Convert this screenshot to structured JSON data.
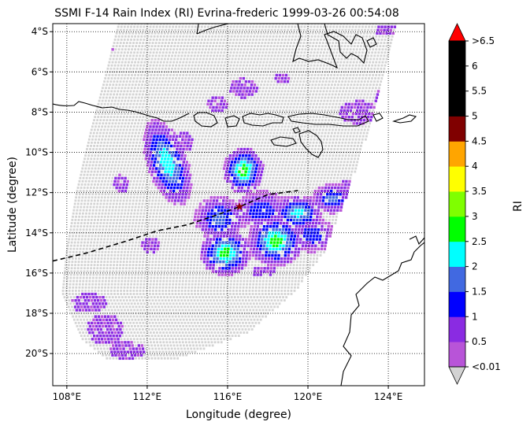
{
  "chart_data": {
    "type": "heatmap",
    "title": "SSMI F-14 Rain Index (RI) Evrina-frederic 1999-03-26 00:54:08",
    "xlabel": "Longitude (degree)",
    "ylabel": "Latitude (degree)",
    "xlim": [
      107.3,
      125.8
    ],
    "ylim": [
      -21.6,
      -3.6
    ],
    "x_ticks": [
      {
        "value": 108,
        "label": "108°E"
      },
      {
        "value": 112,
        "label": "112°E"
      },
      {
        "value": 116,
        "label": "116°E"
      },
      {
        "value": 120,
        "label": "120°E"
      },
      {
        "value": 124,
        "label": "124°E"
      }
    ],
    "y_ticks": [
      {
        "value": -4,
        "label": "4°S"
      },
      {
        "value": -6,
        "label": "6°S"
      },
      {
        "value": -8,
        "label": "8°S"
      },
      {
        "value": -10,
        "label": "10°S"
      },
      {
        "value": -12,
        "label": "12°S"
      },
      {
        "value": -14,
        "label": "14°S"
      },
      {
        "value": -16,
        "label": "16°S"
      },
      {
        "value": -18,
        "label": "18°S"
      },
      {
        "value": -20,
        "label": "20°S"
      }
    ],
    "grid": "dotted",
    "colorbar": {
      "label": "RI",
      "bins": [
        {
          "label": "<0.01",
          "color": "#b854d8"
        },
        {
          "label": "0.5",
          "color": "#8a2be2"
        },
        {
          "label": "1",
          "color": "#0000ff"
        },
        {
          "label": "1.5",
          "color": "#4169e1"
        },
        {
          "label": "2",
          "color": "#00ffff"
        },
        {
          "label": "2.5",
          "color": "#00ff00"
        },
        {
          "label": "3",
          "color": "#7fff00"
        },
        {
          "label": "3.5",
          "color": "#ffff00"
        },
        {
          "label": "4",
          "color": "#ffa500"
        },
        {
          "label": "4.5",
          "color": "#800000"
        },
        {
          "label": "5",
          "color": "#000000"
        },
        {
          "label": "5.5",
          "color": "#000000"
        },
        {
          "label": "6",
          "color": "#000000"
        }
      ],
      "top_label": ">6.5",
      "over_color": "#ff0000",
      "under_color": "#d3d3d3"
    },
    "swath_color": "#d3d3d3",
    "storm_center": {
      "lon": 116.6,
      "lat": -12.7,
      "color": "#8b0000"
    },
    "track": [
      [
        107.3,
        -15.4
      ],
      [
        109.0,
        -15.0
      ],
      [
        111.0,
        -14.4
      ],
      [
        112.5,
        -13.9
      ],
      [
        114.0,
        -13.6
      ],
      [
        115.5,
        -13.1
      ],
      [
        116.6,
        -12.7
      ],
      [
        118.0,
        -12.1
      ],
      [
        119.5,
        -11.9
      ]
    ],
    "rain_cells": [
      {
        "lon": 113.0,
        "lat": -10.5,
        "rx": 0.8,
        "ry": 1.8,
        "peak": 2.3,
        "tilt": -0.35
      },
      {
        "lon": 116.8,
        "lat": -10.9,
        "rx": 0.8,
        "ry": 0.9,
        "peak": 2.7,
        "tilt": 0
      },
      {
        "lon": 115.6,
        "lat": -13.3,
        "rx": 1.0,
        "ry": 0.9,
        "peak": 1.6,
        "tilt": 0
      },
      {
        "lon": 115.9,
        "lat": -15.0,
        "rx": 1.0,
        "ry": 0.9,
        "peak": 2.6,
        "tilt": 0
      },
      {
        "lon": 118.4,
        "lat": -14.4,
        "rx": 1.1,
        "ry": 1.0,
        "peak": 2.6,
        "tilt": 0
      },
      {
        "lon": 119.5,
        "lat": -13.0,
        "rx": 1.0,
        "ry": 0.7,
        "peak": 2.1,
        "tilt": 0
      },
      {
        "lon": 121.2,
        "lat": -12.3,
        "rx": 0.8,
        "ry": 0.6,
        "peak": 1.6,
        "tilt": 0
      },
      {
        "lon": 117.7,
        "lat": -12.9,
        "rx": 1.1,
        "ry": 0.8,
        "peak": 1.3,
        "tilt": 0
      },
      {
        "lon": 120.2,
        "lat": -14.1,
        "rx": 0.9,
        "ry": 0.7,
        "peak": 1.3,
        "tilt": 0
      }
    ],
    "light_rain_patches": [
      {
        "lon": 116.8,
        "lat": -6.8,
        "rx": 0.7,
        "ry": 0.5
      },
      {
        "lon": 115.5,
        "lat": -7.6,
        "rx": 0.5,
        "ry": 0.4
      },
      {
        "lon": 118.7,
        "lat": -6.3,
        "rx": 0.4,
        "ry": 0.3
      },
      {
        "lon": 122.5,
        "lat": -8.0,
        "rx": 1.0,
        "ry": 0.6
      },
      {
        "lon": 123.7,
        "lat": -7.3,
        "rx": 0.4,
        "ry": 0.5
      },
      {
        "lon": 123.9,
        "lat": -3.9,
        "rx": 0.6,
        "ry": 0.3
      },
      {
        "lon": 112.2,
        "lat": -14.6,
        "rx": 0.5,
        "ry": 0.4
      },
      {
        "lon": 109.1,
        "lat": -17.5,
        "rx": 0.9,
        "ry": 0.5
      },
      {
        "lon": 109.9,
        "lat": -18.8,
        "rx": 0.9,
        "ry": 0.8
      },
      {
        "lon": 111.0,
        "lat": -19.8,
        "rx": 0.9,
        "ry": 0.5
      },
      {
        "lon": 110.7,
        "lat": -11.6,
        "rx": 0.4,
        "ry": 0.5
      },
      {
        "lon": 110.0,
        "lat": -4.8,
        "rx": 0.3,
        "ry": 0.3
      },
      {
        "lon": 113.8,
        "lat": -9.5,
        "rx": 0.5,
        "ry": 0.5
      },
      {
        "lon": 121.9,
        "lat": -11.8,
        "rx": 0.4,
        "ry": 0.4
      },
      {
        "lon": 117.8,
        "lat": -15.9,
        "rx": 0.6,
        "ry": 0.3
      }
    ],
    "coast_color": "#000000"
  }
}
